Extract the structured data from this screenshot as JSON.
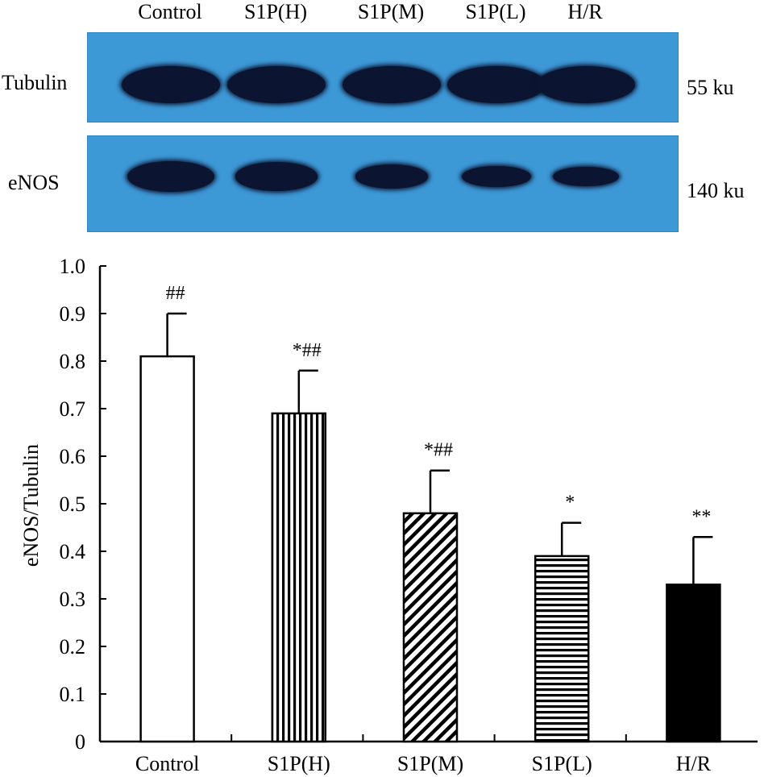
{
  "blot": {
    "lanes": [
      "Control",
      "S1P(H)",
      "S1P(M)",
      "S1P(L)",
      "H/R"
    ],
    "rows": [
      {
        "name": "Tubulin",
        "size": "55 ku"
      },
      {
        "name": "eNOS",
        "size": "140 ku"
      }
    ],
    "membrane_color": "#3d98d6",
    "band_color": "#0b1430",
    "band_intensity": {
      "Tubulin": [
        1.0,
        1.0,
        1.0,
        1.0,
        1.0
      ],
      "eNOS": [
        0.81,
        0.69,
        0.48,
        0.39,
        0.33
      ]
    }
  },
  "chart_data": {
    "type": "bar",
    "categories": [
      "Control",
      "S1P(H)",
      "S1P(M)",
      "S1P(L)",
      "H/R"
    ],
    "values": [
      0.81,
      0.69,
      0.48,
      0.39,
      0.33
    ],
    "error": [
      0.09,
      0.09,
      0.09,
      0.07,
      0.1
    ],
    "annotations": [
      "##",
      "*##",
      "*##",
      "*",
      "**"
    ],
    "fills": [
      "open",
      "vertical-stripes",
      "diagonal-stripes",
      "horizontal-stripes",
      "solid"
    ],
    "ylabel": "eNOS/Tubulin",
    "xlabel": "",
    "ylim": [
      0,
      1.0
    ],
    "yticks": [
      "0",
      "0.1",
      "0.2",
      "0.3",
      "0.4",
      "0.5",
      "0.6",
      "0.7",
      "0.8",
      "0.9",
      "1.0"
    ],
    "grid": false
  }
}
